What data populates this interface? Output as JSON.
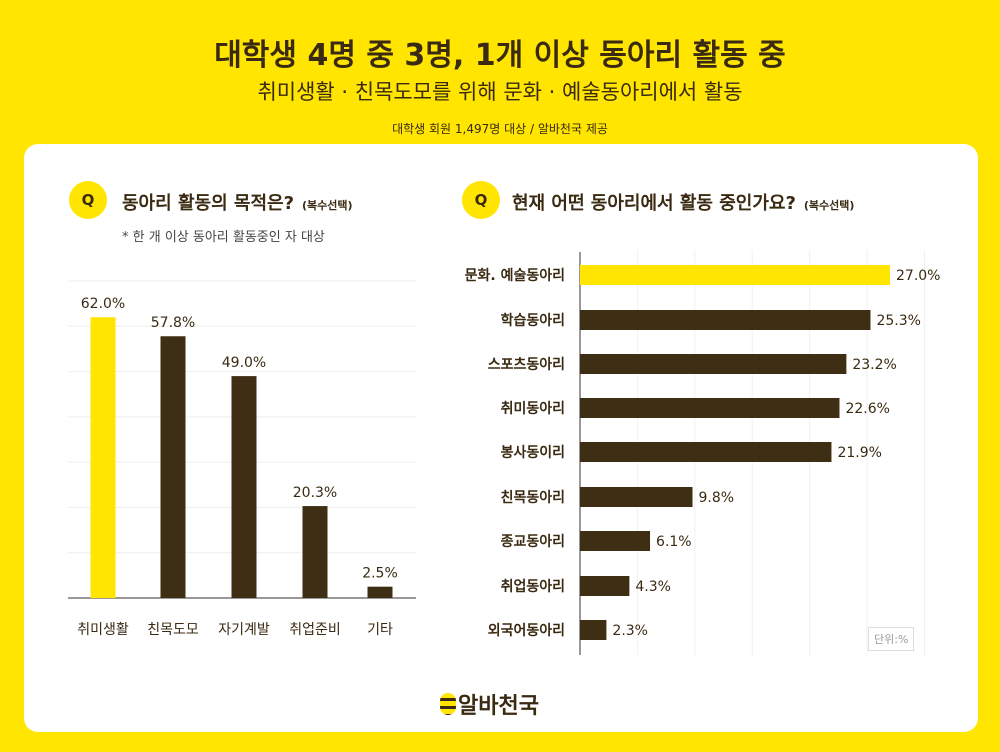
{
  "header": {
    "title": "대학생 4명 중 3명, 1개 이상 동아리 활동 중",
    "subtitle": "취미생활 · 친목도모를 위해 문화 · 예술동아리에서 활동",
    "source": "대학생 회원 1,497명 대상 / 알바천국 제공"
  },
  "colors": {
    "highlight": "#FFE500",
    "bar": "#3D2E14",
    "background": "#FFE500"
  },
  "chart_data": [
    {
      "type": "bar",
      "badge": "Q",
      "title": "동아리 활동의 목적은?",
      "title_note": "(복수선택)",
      "subtitle": "* 한 개 이상 동아리 활동중인 자 대상",
      "categories": [
        "취미생활",
        "친목도모",
        "자기계발",
        "취업준비",
        "기타"
      ],
      "values": [
        62.0,
        57.8,
        49.0,
        20.3,
        2.5
      ],
      "labels": [
        "62.0%",
        "57.8%",
        "49.0%",
        "20.3%",
        "2.5%"
      ],
      "ylim": [
        0,
        70
      ],
      "grid": true,
      "highlight_index": 0
    },
    {
      "type": "bar",
      "orientation": "horizontal",
      "badge": "Q",
      "title": "현재 어떤 동아리에서 활동 중인가요?",
      "title_note": "(복수선택)",
      "categories": [
        "문화. 예술동아리",
        "학습동아리",
        "스포츠동아리",
        "취미동아리",
        "봉사동이리",
        "친목동아리",
        "종교동아리",
        "취업동아리",
        "외국어동아리"
      ],
      "values": [
        27.0,
        25.3,
        23.2,
        22.6,
        21.9,
        9.8,
        6.1,
        4.3,
        2.3
      ],
      "labels": [
        "27.0%",
        "25.3%",
        "23.2%",
        "22.6%",
        "21.9%",
        "9.8%",
        "6.1%",
        "4.3%",
        "2.3%"
      ],
      "xlim": [
        0,
        30
      ],
      "grid": true,
      "highlight_index": 0,
      "unit": "단위:%"
    }
  ],
  "footer": {
    "logo": "알바천국"
  }
}
